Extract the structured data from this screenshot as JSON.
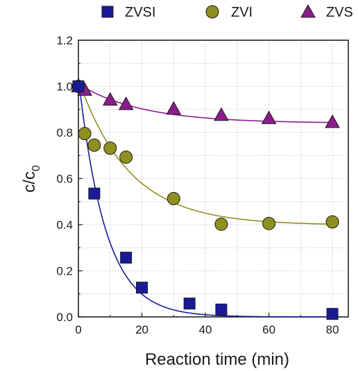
{
  "chart_data": {
    "type": "scatter",
    "title": "",
    "xlabel": "Reaction time (min)",
    "ylabel_main": "c/c",
    "ylabel_sub": "0",
    "xlim": [
      0,
      85
    ],
    "ylim": [
      0,
      1.2
    ],
    "x_ticks": [
      "0",
      "20",
      "40",
      "60",
      "80"
    ],
    "y_ticks": [
      "0.0",
      "0.2",
      "0.4",
      "0.6",
      "0.8",
      "1.0",
      "1.2"
    ],
    "grid": true,
    "legend_position": "top",
    "series": [
      {
        "name": "ZVSI",
        "marker": "square",
        "color": "#1a1a99",
        "x": [
          0,
          5,
          15,
          20,
          35,
          45,
          80
        ],
        "y": [
          1.0,
          0.535,
          0.257,
          0.127,
          0.058,
          0.032,
          0.013
        ],
        "fit": {
          "c_inf": 0.0,
          "c_0": 1.04,
          "tau": 8.5
        }
      },
      {
        "name": "ZVI",
        "marker": "circle",
        "color": "#8f8f1f",
        "x": [
          0,
          2,
          5,
          10,
          15,
          30,
          45,
          60,
          80
        ],
        "y": [
          1.0,
          0.795,
          0.745,
          0.732,
          0.693,
          0.513,
          0.402,
          0.405,
          0.412
        ],
        "fit": {
          "c_inf": 0.398,
          "c_0": 1.03,
          "tau": 16.0
        }
      },
      {
        "name": "ZVS",
        "marker": "triangle",
        "color": "#8c1c8c",
        "x": [
          0,
          2,
          10,
          15,
          30,
          45,
          60,
          80
        ],
        "y": [
          1.0,
          0.985,
          0.942,
          0.923,
          0.903,
          0.876,
          0.862,
          0.845
        ],
        "fit": {
          "c_inf": 0.84,
          "c_0": 1.01,
          "tau": 20.0
        }
      }
    ]
  }
}
